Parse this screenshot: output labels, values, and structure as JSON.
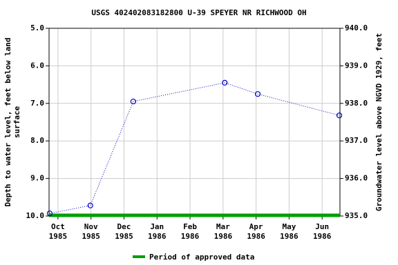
{
  "chart_data": {
    "type": "line",
    "title": "USGS 402402083182800 U-39 SPEYER NR RICHWOOD OH",
    "ylabel": [
      "Depth to water level, feet below land",
      "surface"
    ],
    "y2label": "Groundwater level above NGVD 1929, feet",
    "xlim": [
      -0.27,
      8.54
    ],
    "xticks": [
      {
        "value": 0,
        "label": "Oct 1985"
      },
      {
        "value": 1,
        "label": "Nov 1985"
      },
      {
        "value": 2,
        "label": "Dec 1985"
      },
      {
        "value": 3,
        "label": "Jan 1986"
      },
      {
        "value": 4,
        "label": "Feb 1986"
      },
      {
        "value": 5,
        "label": "Mar 1986"
      },
      {
        "value": 6,
        "label": "Apr 1986"
      },
      {
        "value": 7,
        "label": "May 1986"
      },
      {
        "value": 8,
        "label": "Jun 1986"
      }
    ],
    "ylim": [
      5.0,
      10.0
    ],
    "y_inverted": true,
    "yticks": [
      {
        "value": 5,
        "label": "5.0"
      },
      {
        "value": 6,
        "label": "6.0"
      },
      {
        "value": 7,
        "label": "7.0"
      },
      {
        "value": 8,
        "label": "8.0"
      },
      {
        "value": 9,
        "label": "9.0"
      },
      {
        "value": 10,
        "label": "10.0"
      }
    ],
    "y2lim": [
      940.0,
      935.0
    ],
    "y2ticks": [
      {
        "value": 940,
        "label": "940.0"
      },
      {
        "value": 939,
        "label": "939.0"
      },
      {
        "value": 938,
        "label": "938.0"
      },
      {
        "value": 937,
        "label": "937.0"
      },
      {
        "value": 936,
        "label": "936.0"
      },
      {
        "value": 935,
        "label": "935.0"
      }
    ],
    "grid": true,
    "series": [
      {
        "name": "Depth to water level",
        "color": "#0000cc",
        "x": [
          -0.25,
          0.98,
          2.28,
          5.05,
          6.05,
          8.52
        ],
        "values": [
          9.93,
          9.72,
          6.95,
          6.45,
          6.75,
          7.32
        ]
      }
    ],
    "approved_period": {
      "name": "Period of approved data",
      "color": "#00a000",
      "x": [
        -0.27,
        8.54
      ]
    }
  }
}
